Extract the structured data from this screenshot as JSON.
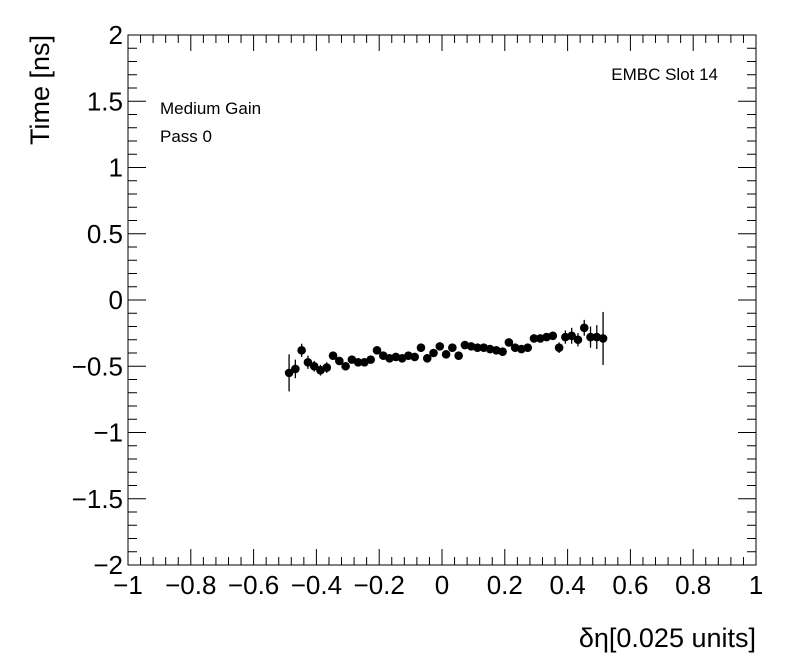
{
  "chart_data": {
    "type": "scatter",
    "title": "",
    "xlabel": "δη[0.025 units]",
    "ylabel": "Time [ns]",
    "xlim": [
      -1,
      1
    ],
    "ylim": [
      -2,
      2
    ],
    "x_ticks": [
      "−1",
      "−0.8",
      "−0.6",
      "−0.4",
      "−0.2",
      "0",
      "0.2",
      "0.4",
      "0.6",
      "0.8",
      "1"
    ],
    "y_ticks": [
      "−2",
      "−1.5",
      "−1",
      "−0.5",
      "0",
      "0.5",
      "1",
      "1.5",
      "2"
    ],
    "annotations": {
      "top_right": "EMBC Slot 14",
      "line1": "Medium Gain",
      "line2": "Pass 0"
    },
    "grid": false,
    "legend": "none",
    "marker_color": "#000000",
    "series": [
      {
        "points": [
          {
            "x": -0.487,
            "y": -0.55,
            "err": 0.14
          },
          {
            "x": -0.467,
            "y": -0.52,
            "err": 0.07
          },
          {
            "x": -0.447,
            "y": -0.38,
            "err": 0.05
          },
          {
            "x": -0.427,
            "y": -0.47,
            "err": 0.05
          },
          {
            "x": -0.407,
            "y": -0.5,
            "err": 0.04
          },
          {
            "x": -0.387,
            "y": -0.53,
            "err": 0.04
          },
          {
            "x": -0.367,
            "y": -0.51,
            "err": 0.04
          },
          {
            "x": -0.347,
            "y": -0.42,
            "err": 0.03
          },
          {
            "x": -0.327,
            "y": -0.46,
            "err": 0.03
          },
          {
            "x": -0.307,
            "y": -0.5,
            "err": 0.03
          },
          {
            "x": -0.287,
            "y": -0.45,
            "err": 0.03
          },
          {
            "x": -0.267,
            "y": -0.47,
            "err": 0.03
          },
          {
            "x": -0.247,
            "y": -0.47,
            "err": 0.03
          },
          {
            "x": -0.227,
            "y": -0.45,
            "err": 0.03
          },
          {
            "x": -0.207,
            "y": -0.38,
            "err": 0.03
          },
          {
            "x": -0.187,
            "y": -0.42,
            "err": 0.03
          },
          {
            "x": -0.167,
            "y": -0.44,
            "err": 0.03
          },
          {
            "x": -0.147,
            "y": -0.43,
            "err": 0.03
          },
          {
            "x": -0.127,
            "y": -0.44,
            "err": 0.03
          },
          {
            "x": -0.107,
            "y": -0.42,
            "err": 0.03
          },
          {
            "x": -0.087,
            "y": -0.43,
            "err": 0.03
          },
          {
            "x": -0.067,
            "y": -0.36,
            "err": 0.03
          },
          {
            "x": -0.047,
            "y": -0.44,
            "err": 0.03
          },
          {
            "x": -0.027,
            "y": -0.4,
            "err": 0.03
          },
          {
            "x": -0.007,
            "y": -0.35,
            "err": 0.03
          },
          {
            "x": 0.013,
            "y": -0.41,
            "err": 0.03
          },
          {
            "x": 0.033,
            "y": -0.36,
            "err": 0.03
          },
          {
            "x": 0.053,
            "y": -0.42,
            "err": 0.03
          },
          {
            "x": 0.073,
            "y": -0.34,
            "err": 0.03
          },
          {
            "x": 0.093,
            "y": -0.35,
            "err": 0.03
          },
          {
            "x": 0.113,
            "y": -0.36,
            "err": 0.03
          },
          {
            "x": 0.133,
            "y": -0.36,
            "err": 0.03
          },
          {
            "x": 0.153,
            "y": -0.37,
            "err": 0.03
          },
          {
            "x": 0.173,
            "y": -0.38,
            "err": 0.03
          },
          {
            "x": 0.193,
            "y": -0.39,
            "err": 0.03
          },
          {
            "x": 0.213,
            "y": -0.32,
            "err": 0.03
          },
          {
            "x": 0.233,
            "y": -0.36,
            "err": 0.03
          },
          {
            "x": 0.253,
            "y": -0.37,
            "err": 0.03
          },
          {
            "x": 0.273,
            "y": -0.36,
            "err": 0.03
          },
          {
            "x": 0.293,
            "y": -0.29,
            "err": 0.03
          },
          {
            "x": 0.313,
            "y": -0.29,
            "err": 0.03
          },
          {
            "x": 0.333,
            "y": -0.28,
            "err": 0.03
          },
          {
            "x": 0.353,
            "y": -0.27,
            "err": 0.03
          },
          {
            "x": 0.373,
            "y": -0.36,
            "err": 0.04
          },
          {
            "x": 0.393,
            "y": -0.28,
            "err": 0.05
          },
          {
            "x": 0.413,
            "y": -0.27,
            "err": 0.06
          },
          {
            "x": 0.433,
            "y": -0.3,
            "err": 0.05
          },
          {
            "x": 0.453,
            "y": -0.21,
            "err": 0.06
          },
          {
            "x": 0.473,
            "y": -0.28,
            "err": 0.08
          },
          {
            "x": 0.493,
            "y": -0.28,
            "err": 0.09
          },
          {
            "x": 0.513,
            "y": -0.29,
            "err": 0.2
          }
        ]
      }
    ]
  }
}
